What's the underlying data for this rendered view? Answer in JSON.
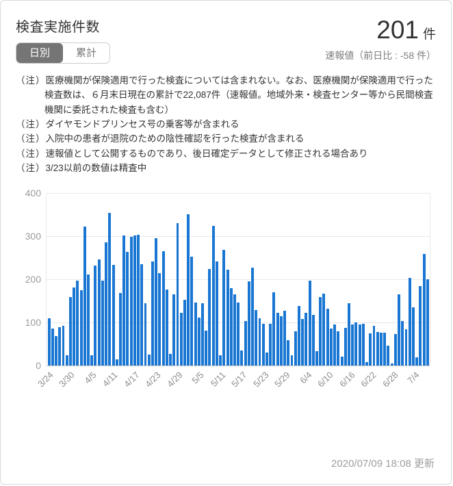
{
  "card": {
    "title": "検査実施件数",
    "value": "201",
    "unit": "件",
    "sub_value": "速報値（前日比 : -58 件）",
    "toggle": {
      "daily": "日別",
      "cumulative": "累計"
    },
    "note_mark": "（注）",
    "notes": [
      "医療機関が保険適用で行った検査については含まれない。なお、医療機関が保険適用で行った検査数は、６月末日現在の累計で22,087件（速報値。地域外来・検査センター等から民間検査機関に委託された検査も含む）",
      "ダイヤモンドプリンセス号の乗客等が含まれる",
      "入院中の患者が退院のための陰性確認を行った検査が含まれる",
      "速報値として公開するものであり、後日確定データとして修正される場合あり",
      "3/23以前の数値は精査中"
    ],
    "updated": "2020/07/09 18:08 更新"
  },
  "colors": {
    "bar": "#1976d2",
    "selected_toggle": "#757575",
    "grid": "#e8e8e8",
    "text": "#333333",
    "muted": "#9e9e9e"
  },
  "chart_data": {
    "type": "bar",
    "title": "検査実施件数（日別）",
    "xlabel": "",
    "ylabel": "",
    "ylim": [
      0,
      400
    ],
    "yticks": [
      0,
      100,
      200,
      300,
      400
    ],
    "grid": true,
    "legend": "none",
    "x": [
      "3/24",
      "3/25",
      "3/26",
      "3/27",
      "3/28",
      "3/29",
      "3/30",
      "3/31",
      "4/1",
      "4/2",
      "4/3",
      "4/4",
      "4/5",
      "4/6",
      "4/7",
      "4/8",
      "4/9",
      "4/10",
      "4/11",
      "4/12",
      "4/13",
      "4/14",
      "4/15",
      "4/16",
      "4/17",
      "4/18",
      "4/19",
      "4/20",
      "4/21",
      "4/22",
      "4/23",
      "4/24",
      "4/25",
      "4/26",
      "4/27",
      "4/28",
      "4/29",
      "4/30",
      "5/1",
      "5/2",
      "5/3",
      "5/4",
      "5/5",
      "5/6",
      "5/7",
      "5/8",
      "5/9",
      "5/10",
      "5/11",
      "5/12",
      "5/13",
      "5/14",
      "5/15",
      "5/16",
      "5/17",
      "5/18",
      "5/19",
      "5/20",
      "5/21",
      "5/22",
      "5/23",
      "5/24",
      "5/25",
      "5/26",
      "5/27",
      "5/28",
      "5/29",
      "5/30",
      "5/31",
      "6/1",
      "6/2",
      "6/3",
      "6/4",
      "6/5",
      "6/6",
      "6/7",
      "6/8",
      "6/9",
      "6/10",
      "6/11",
      "6/12",
      "6/13",
      "6/14",
      "6/15",
      "6/16",
      "6/17",
      "6/18",
      "6/19",
      "6/20",
      "6/21",
      "6/22",
      "6/23",
      "6/24",
      "6/25",
      "6/26",
      "6/27",
      "6/28",
      "6/29",
      "6/30",
      "7/1",
      "7/2",
      "7/3",
      "7/4",
      "7/5",
      "7/6",
      "7/7",
      "7/8"
    ],
    "values": [
      110,
      86,
      69,
      89,
      93,
      24,
      159,
      182,
      198,
      175,
      322,
      212,
      25,
      233,
      247,
      198,
      287,
      354,
      234,
      15,
      168,
      302,
      264,
      299,
      302,
      303,
      235,
      145,
      26,
      242,
      296,
      214,
      266,
      177,
      27,
      165,
      331,
      122,
      153,
      351,
      253,
      147,
      112,
      145,
      82,
      225,
      325,
      242,
      24,
      269,
      223,
      180,
      165,
      147,
      35,
      103,
      196,
      227,
      129,
      110,
      97,
      30,
      98,
      170,
      122,
      115,
      127,
      59,
      24,
      80,
      138,
      109,
      122,
      197,
      118,
      34,
      159,
      167,
      132,
      87,
      96,
      80,
      21,
      88,
      145,
      96,
      101,
      95,
      98,
      8,
      75,
      93,
      78,
      76,
      77,
      46,
      5,
      73,
      165,
      103,
      85,
      203,
      136,
      19,
      184,
      259,
      201
    ],
    "x_tick_labels": [
      "3/24",
      "3/30",
      "4/5",
      "4/11",
      "4/17",
      "4/23",
      "4/29",
      "5/5",
      "5/11",
      "5/17",
      "5/23",
      "5/29",
      "6/4",
      "6/10",
      "6/16",
      "6/22",
      "6/28",
      "7/4"
    ],
    "x_tick_step": 6
  }
}
